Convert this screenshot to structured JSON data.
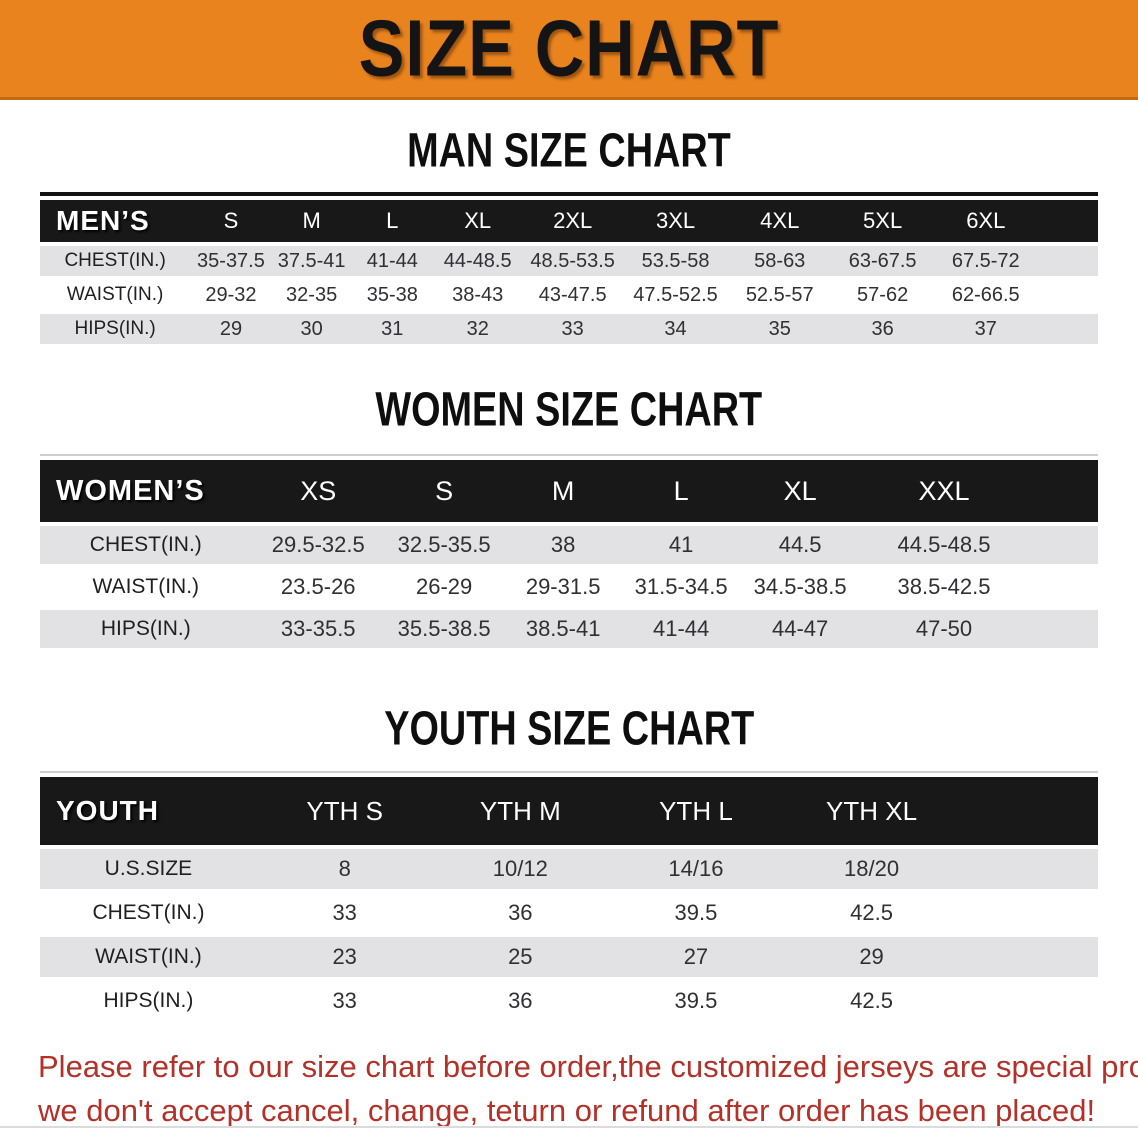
{
  "banner": {
    "title": "SIZE CHART"
  },
  "colors": {
    "banner_orange": "#e8831e",
    "banner_edge": "#bf6a13",
    "header_band_black": "#181818",
    "row_gray": "#e2e2e4",
    "note_red": "#b23129"
  },
  "sections": [
    {
      "id": "men",
      "heading": "MAN SIZE CHART",
      "table": {
        "corner_label": "MEN’S",
        "size_headers": [
          "S",
          "M",
          "L",
          "XL",
          "2XL",
          "3XL",
          "4XL",
          "5XL",
          "6XL"
        ],
        "rows": [
          {
            "label": "CHEST(IN.)",
            "shaded": true,
            "values": [
              "35-37.5",
              "37.5-41",
              "41-44",
              "44-48.5",
              "48.5-53.5",
              "53.5-58",
              "58-63",
              "63-67.5",
              "67.5-72"
            ]
          },
          {
            "label": "WAIST(IN.)",
            "shaded": false,
            "values": [
              "29-32",
              "32-35",
              "35-38",
              "38-43",
              "43-47.5",
              "47.5-52.5",
              "52.5-57",
              "57-62",
              "62-66.5"
            ]
          },
          {
            "label": "HIPS(IN.)",
            "shaded": true,
            "values": [
              "29",
              "30",
              "31",
              "32",
              "33",
              "34",
              "35",
              "36",
              "37"
            ]
          }
        ]
      }
    },
    {
      "id": "women",
      "heading": "WOMEN SIZE CHART",
      "table": {
        "corner_label": "WOMEN’S",
        "size_headers": [
          "XS",
          "S",
          "M",
          "L",
          "XL",
          "XXL"
        ],
        "rows": [
          {
            "label": "CHEST(IN.)",
            "shaded": true,
            "values": [
              "29.5-32.5",
              "32.5-35.5",
              "38",
              "41",
              "44.5",
              "44.5-48.5"
            ]
          },
          {
            "label": "WAIST(IN.)",
            "shaded": false,
            "values": [
              "23.5-26",
              "26-29",
              "29-31.5",
              "31.5-34.5",
              "34.5-38.5",
              "38.5-42.5"
            ]
          },
          {
            "label": "HIPS(IN.)",
            "shaded": true,
            "values": [
              "33-35.5",
              "35.5-38.5",
              "38.5-41",
              "41-44",
              "44-47",
              "47-50"
            ]
          }
        ]
      }
    },
    {
      "id": "youth",
      "heading": "YOUTH SIZE CHART",
      "table": {
        "corner_label": "YOUTH",
        "size_headers": [
          "YTH S",
          "YTH M",
          "YTH L",
          "YTH XL"
        ],
        "rows": [
          {
            "label": "U.S.SIZE",
            "shaded": true,
            "values": [
              "8",
              "10/12",
              "14/16",
              "18/20"
            ]
          },
          {
            "label": "CHEST(IN.)",
            "shaded": false,
            "values": [
              "33",
              "36",
              "39.5",
              "42.5"
            ]
          },
          {
            "label": "WAIST(IN.)",
            "shaded": true,
            "values": [
              "23",
              "25",
              "27",
              "29"
            ]
          },
          {
            "label": "HIPS(IN.)",
            "shaded": false,
            "values": [
              "33",
              "36",
              "39.5",
              "42.5"
            ]
          }
        ]
      }
    }
  ],
  "note": {
    "line1": "Please refer to our size chart before order,the customized jerseys are special products,",
    "line2": "we don't accept cancel, change, teturn or refund after order has been placed!"
  }
}
